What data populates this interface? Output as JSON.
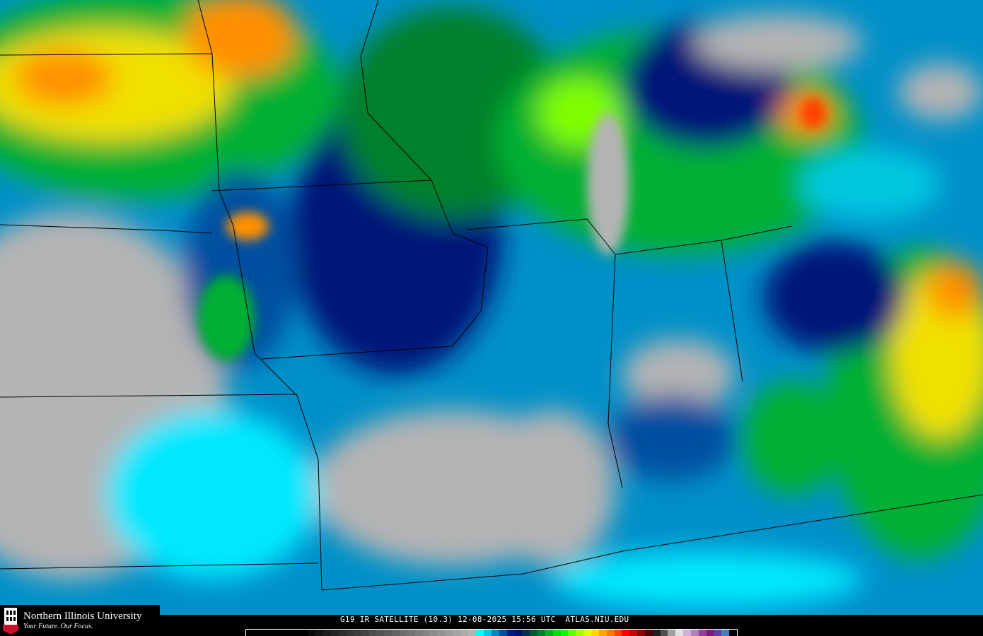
{
  "logo": {
    "name": "Northern Illinois University",
    "tagline": "Your Future. Our Focus.",
    "badge": "NIU",
    "brand_color": "#c8102e"
  },
  "caption": "G19 IR SATELLITE (10.3) 12-08-2025 15:56 UTC  ATLAS.NIU.EDU",
  "colorbar": [
    "#000000",
    "#000000",
    "#000000",
    "#000000",
    "#000000",
    "#000000",
    "#000000",
    "#000000",
    "#0a0a0a",
    "#141414",
    "#1c1c1c",
    "#242424",
    "#2c2c2c",
    "#343434",
    "#3c3c3c",
    "#444444",
    "#4c4c4c",
    "#545454",
    "#5c5c5c",
    "#646464",
    "#6c6c6c",
    "#747474",
    "#7c7c7c",
    "#848484",
    "#8c8c8c",
    "#949494",
    "#9c9c9c",
    "#a4a4a4",
    "#acacac",
    "#b4b4b4",
    "#00ffff",
    "#00c8e0",
    "#0088c0",
    "#0050a0",
    "#001c80",
    "#001070",
    "#003050",
    "#005a30",
    "#00802c",
    "#00b020",
    "#00e000",
    "#00ff00",
    "#60ff00",
    "#a0ff00",
    "#e0ff00",
    "#ffd800",
    "#ffa800",
    "#ff7800",
    "#ff4000",
    "#ff0000",
    "#c80000",
    "#8c0000",
    "#500000",
    "#1e1e1e",
    "#505050",
    "#a0a0a0",
    "#e0e0e0",
    "#d0b0d8",
    "#b080c0",
    "#9040a0",
    "#801880",
    "#6040a0",
    "#4080c0",
    "#000000"
  ],
  "map": {
    "palette": {
      "clear": "#b4b4b4",
      "cool": "#0090c8",
      "cyan": "#00e8ff",
      "navy": "#001878",
      "green": "#00b030",
      "lime": "#80ff00",
      "yellow": "#f0e000",
      "orange": "#ff9000",
      "red": "#ff4000",
      "border": "#000000"
    }
  }
}
